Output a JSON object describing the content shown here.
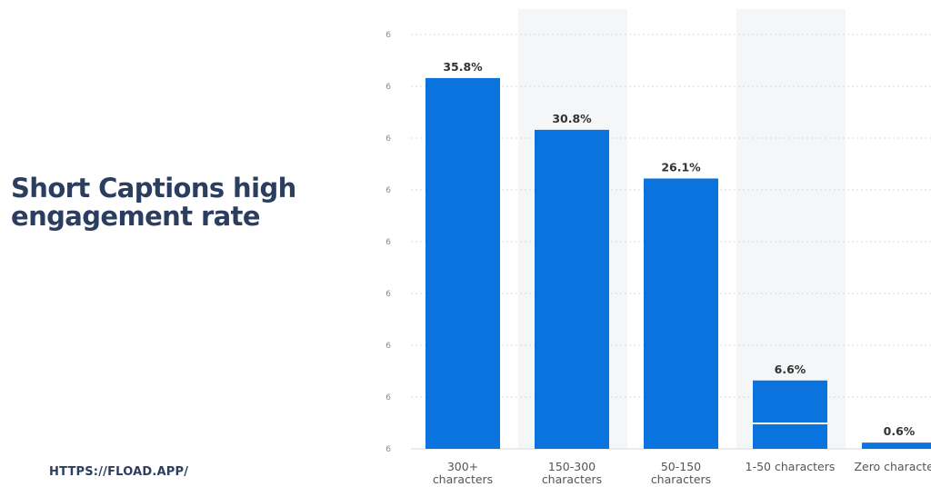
{
  "headline": {
    "line1": "Short Captions high",
    "line2": "engagement rate"
  },
  "source_url": "HTTPS://FLOAD.APP/",
  "colors": {
    "bar": "#0a73dd",
    "headline": "#2c3e5f",
    "grid": "#d9d9d9",
    "band": "#f4f6f8"
  },
  "chart_data": {
    "type": "bar",
    "title": "",
    "xlabel": "",
    "ylabel": "",
    "ylim": [
      0,
      40
    ],
    "grid": true,
    "y_tick_label": "6",
    "categories": [
      [
        "300+",
        "characters"
      ],
      [
        "150-300",
        "characters"
      ],
      [
        "50-150",
        "characters"
      ],
      [
        "1-50 characters"
      ],
      [
        "Zero characters"
      ]
    ],
    "values": [
      35.8,
      30.8,
      26.1,
      6.6,
      0.6
    ],
    "data_labels": [
      "35.8%",
      "30.8%",
      "26.1%",
      "6.6%",
      "0.6%"
    ]
  }
}
